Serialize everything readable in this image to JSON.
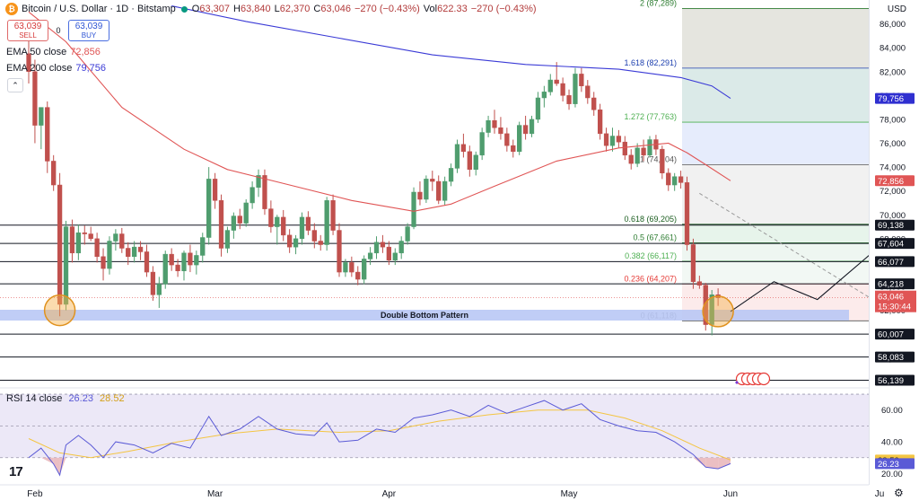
{
  "header": {
    "symbol": "Bitcoin / U.S. Dollar · 1D · Bitstamp",
    "logo_glyph": "₿",
    "o_label": "O",
    "o_value": "63,307",
    "h_label": "H",
    "h_value": "63,840",
    "l_label": "L",
    "l_value": "62,370",
    "c_label": "C",
    "c_value": "63,046",
    "change": "−270 (−0.43%)",
    "vol_label": "Vol",
    "vol_value": "622.33",
    "vol_change": "−270 (−0.43%)"
  },
  "trade": {
    "sell_price": "63,039",
    "sell_label": "SELL",
    "spread": "0",
    "buy_price": "63,039",
    "buy_label": "BUY"
  },
  "indicators": {
    "ema50_label": "EMA 50 close",
    "ema50_value": "72,856",
    "ema50_color": "#e05555",
    "ema200_label": "EMA 200 close",
    "ema200_value": "79,756",
    "ema200_color": "#3a3ad6",
    "collapse_glyph": "⌃",
    "rsi_label": "RSI 14 close",
    "rsi_value": "26.23",
    "rsi_ma_value": "28.52"
  },
  "currency": "USD",
  "double_bottom_label": "Double Bottom Pattern",
  "tv_logo": "17",
  "settings_glyph": "⚙",
  "chart_data": {
    "type": "candlestick",
    "x_ticks": [
      "Feb",
      "Mar",
      "Apr",
      "May",
      "Jun",
      "Ju"
    ],
    "y_ticks": [
      "58,000",
      "60,000",
      "62,000",
      "64,000",
      "66,000",
      "68,000",
      "70,000",
      "72,000",
      "74,000",
      "76,000",
      "78,000",
      "80,000",
      "82,000",
      "84,000",
      "86,000"
    ],
    "ylim": [
      55500,
      88000
    ],
    "rsi_ticks": [
      "60.00",
      "40.00",
      "20.00"
    ],
    "rsi_ylim": [
      14,
      74
    ],
    "candles": [
      {
        "o": 83500,
        "h": 85500,
        "l": 81000,
        "c": 82000
      },
      {
        "o": 82000,
        "h": 83000,
        "l": 76000,
        "c": 77500
      },
      {
        "o": 77500,
        "h": 79000,
        "l": 75500,
        "c": 79000
      },
      {
        "o": 79000,
        "h": 79500,
        "l": 73500,
        "c": 74500
      },
      {
        "o": 74500,
        "h": 75000,
        "l": 72000,
        "c": 72500
      },
      {
        "o": 72500,
        "h": 73500,
        "l": 61500,
        "c": 62500
      },
      {
        "o": 62500,
        "h": 69500,
        "l": 62000,
        "c": 69000
      },
      {
        "o": 69000,
        "h": 69600,
        "l": 66000,
        "c": 66800
      },
      {
        "o": 66800,
        "h": 69200,
        "l": 66200,
        "c": 68500
      },
      {
        "o": 68500,
        "h": 69100,
        "l": 67500,
        "c": 68400
      },
      {
        "o": 68400,
        "h": 69000,
        "l": 67800,
        "c": 68000
      },
      {
        "o": 68000,
        "h": 68500,
        "l": 66000,
        "c": 66500
      },
      {
        "o": 66500,
        "h": 67200,
        "l": 64500,
        "c": 65500
      },
      {
        "o": 65500,
        "h": 68200,
        "l": 65000,
        "c": 67800
      },
      {
        "o": 67800,
        "h": 68800,
        "l": 67000,
        "c": 68400
      },
      {
        "o": 68400,
        "h": 68900,
        "l": 66800,
        "c": 67200
      },
      {
        "o": 67200,
        "h": 67700,
        "l": 65800,
        "c": 66500
      },
      {
        "o": 66500,
        "h": 67800,
        "l": 66000,
        "c": 67300
      },
      {
        "o": 67300,
        "h": 67800,
        "l": 66200,
        "c": 66900
      },
      {
        "o": 66900,
        "h": 67500,
        "l": 64800,
        "c": 65200
      },
      {
        "o": 65200,
        "h": 65700,
        "l": 62800,
        "c": 63300
      },
      {
        "o": 63300,
        "h": 64800,
        "l": 62200,
        "c": 64200
      },
      {
        "o": 64200,
        "h": 67000,
        "l": 63800,
        "c": 66700
      },
      {
        "o": 66700,
        "h": 67200,
        "l": 65300,
        "c": 65800
      },
      {
        "o": 65800,
        "h": 66300,
        "l": 64800,
        "c": 65300
      },
      {
        "o": 65300,
        "h": 67000,
        "l": 64500,
        "c": 66800
      },
      {
        "o": 66800,
        "h": 67500,
        "l": 65200,
        "c": 65800
      },
      {
        "o": 65800,
        "h": 67000,
        "l": 65000,
        "c": 66600
      },
      {
        "o": 66600,
        "h": 68500,
        "l": 66000,
        "c": 68100
      },
      {
        "o": 68100,
        "h": 74000,
        "l": 67500,
        "c": 73000
      },
      {
        "o": 73000,
        "h": 73500,
        "l": 70500,
        "c": 71200
      },
      {
        "o": 71200,
        "h": 71700,
        "l": 66500,
        "c": 67200
      },
      {
        "o": 67200,
        "h": 69000,
        "l": 66800,
        "c": 68700
      },
      {
        "o": 68700,
        "h": 70200,
        "l": 68000,
        "c": 69900
      },
      {
        "o": 69900,
        "h": 70500,
        "l": 68800,
        "c": 69300
      },
      {
        "o": 69300,
        "h": 71300,
        "l": 69000,
        "c": 71000
      },
      {
        "o": 71000,
        "h": 72800,
        "l": 70500,
        "c": 72300
      },
      {
        "o": 72300,
        "h": 73800,
        "l": 71500,
        "c": 73300
      },
      {
        "o": 73300,
        "h": 73800,
        "l": 70000,
        "c": 70500
      },
      {
        "o": 70500,
        "h": 71200,
        "l": 68500,
        "c": 69000
      },
      {
        "o": 69000,
        "h": 70000,
        "l": 67500,
        "c": 69800
      },
      {
        "o": 69800,
        "h": 70400,
        "l": 67800,
        "c": 68300
      },
      {
        "o": 68300,
        "h": 68800,
        "l": 66800,
        "c": 67300
      },
      {
        "o": 67300,
        "h": 68300,
        "l": 66700,
        "c": 68000
      },
      {
        "o": 68000,
        "h": 70200,
        "l": 67500,
        "c": 69800
      },
      {
        "o": 69800,
        "h": 70300,
        "l": 68300,
        "c": 68700
      },
      {
        "o": 68700,
        "h": 69300,
        "l": 67200,
        "c": 67800
      },
      {
        "o": 67800,
        "h": 68300,
        "l": 67000,
        "c": 67500
      },
      {
        "o": 67500,
        "h": 71500,
        "l": 67000,
        "c": 71200
      },
      {
        "o": 71200,
        "h": 71700,
        "l": 68300,
        "c": 68700
      },
      {
        "o": 68700,
        "h": 69300,
        "l": 64800,
        "c": 65200
      },
      {
        "o": 65200,
        "h": 66300,
        "l": 64800,
        "c": 66000
      },
      {
        "o": 66000,
        "h": 66500,
        "l": 64800,
        "c": 65200
      },
      {
        "o": 65200,
        "h": 65700,
        "l": 64100,
        "c": 64600
      },
      {
        "o": 64600,
        "h": 66600,
        "l": 64200,
        "c": 66300
      },
      {
        "o": 66300,
        "h": 67300,
        "l": 65800,
        "c": 66800
      },
      {
        "o": 66800,
        "h": 68200,
        "l": 66300,
        "c": 67700
      },
      {
        "o": 67700,
        "h": 68300,
        "l": 66800,
        "c": 67300
      },
      {
        "o": 67300,
        "h": 67800,
        "l": 65800,
        "c": 66200
      },
      {
        "o": 66200,
        "h": 67200,
        "l": 65800,
        "c": 66800
      },
      {
        "o": 66800,
        "h": 68200,
        "l": 66300,
        "c": 67800
      },
      {
        "o": 67800,
        "h": 69300,
        "l": 67500,
        "c": 69000
      },
      {
        "o": 69000,
        "h": 72300,
        "l": 68800,
        "c": 71900
      },
      {
        "o": 71900,
        "h": 72800,
        "l": 70800,
        "c": 71300
      },
      {
        "o": 71300,
        "h": 73300,
        "l": 71000,
        "c": 73000
      },
      {
        "o": 73000,
        "h": 73700,
        "l": 72000,
        "c": 72800
      },
      {
        "o": 72800,
        "h": 73300,
        "l": 70900,
        "c": 71200
      },
      {
        "o": 71200,
        "h": 73200,
        "l": 70800,
        "c": 72800
      },
      {
        "o": 72800,
        "h": 74300,
        "l": 72400,
        "c": 73900
      },
      {
        "o": 73900,
        "h": 76300,
        "l": 73500,
        "c": 75900
      },
      {
        "o": 75900,
        "h": 76800,
        "l": 74800,
        "c": 75300
      },
      {
        "o": 75300,
        "h": 75800,
        "l": 73200,
        "c": 73800
      },
      {
        "o": 73800,
        "h": 75300,
        "l": 73300,
        "c": 75000
      },
      {
        "o": 75000,
        "h": 77300,
        "l": 74600,
        "c": 76900
      },
      {
        "o": 76900,
        "h": 78300,
        "l": 76500,
        "c": 77900
      },
      {
        "o": 77900,
        "h": 78800,
        "l": 76800,
        "c": 77300
      },
      {
        "o": 77300,
        "h": 78200,
        "l": 76300,
        "c": 76800
      },
      {
        "o": 76800,
        "h": 77300,
        "l": 75300,
        "c": 75800
      },
      {
        "o": 75800,
        "h": 76300,
        "l": 74800,
        "c": 75300
      },
      {
        "o": 75300,
        "h": 77800,
        "l": 75000,
        "c": 77500
      },
      {
        "o": 77500,
        "h": 78300,
        "l": 76300,
        "c": 76800
      },
      {
        "o": 76800,
        "h": 78300,
        "l": 76500,
        "c": 78000
      },
      {
        "o": 78000,
        "h": 80300,
        "l": 77700,
        "c": 79800
      },
      {
        "o": 79800,
        "h": 80800,
        "l": 79000,
        "c": 80300
      },
      {
        "o": 80300,
        "h": 81800,
        "l": 80000,
        "c": 81300
      },
      {
        "o": 81300,
        "h": 82800,
        "l": 80800,
        "c": 81000
      },
      {
        "o": 81000,
        "h": 81500,
        "l": 79500,
        "c": 80000
      },
      {
        "o": 80000,
        "h": 80500,
        "l": 78800,
        "c": 79300
      },
      {
        "o": 79300,
        "h": 82300,
        "l": 79000,
        "c": 81800
      },
      {
        "o": 81800,
        "h": 82300,
        "l": 80300,
        "c": 80800
      },
      {
        "o": 80800,
        "h": 81300,
        "l": 79300,
        "c": 79800
      },
      {
        "o": 79800,
        "h": 80300,
        "l": 78300,
        "c": 78800
      },
      {
        "o": 78800,
        "h": 79300,
        "l": 76300,
        "c": 76800
      },
      {
        "o": 76800,
        "h": 77300,
        "l": 75300,
        "c": 75800
      },
      {
        "o": 75800,
        "h": 77300,
        "l": 75300,
        "c": 76600
      },
      {
        "o": 76600,
        "h": 77100,
        "l": 75600,
        "c": 76100
      },
      {
        "o": 76100,
        "h": 76600,
        "l": 74600,
        "c": 75000
      },
      {
        "o": 75000,
        "h": 75500,
        "l": 73800,
        "c": 74300
      },
      {
        "o": 74300,
        "h": 76000,
        "l": 74000,
        "c": 75600
      },
      {
        "o": 75600,
        "h": 76300,
        "l": 74500,
        "c": 75000
      },
      {
        "o": 75000,
        "h": 76600,
        "l": 74800,
        "c": 76300
      },
      {
        "o": 76300,
        "h": 76700,
        "l": 75000,
        "c": 75500
      },
      {
        "o": 75500,
        "h": 75800,
        "l": 73000,
        "c": 73500
      },
      {
        "o": 73500,
        "h": 73900,
        "l": 72000,
        "c": 72500
      },
      {
        "o": 72500,
        "h": 73500,
        "l": 72000,
        "c": 73200
      },
      {
        "o": 73200,
        "h": 73700,
        "l": 72200,
        "c": 72700
      },
      {
        "o": 72700,
        "h": 73200,
        "l": 67000,
        "c": 67500
      },
      {
        "o": 67500,
        "h": 68000,
        "l": 63800,
        "c": 64400
      },
      {
        "o": 64400,
        "h": 64900,
        "l": 63800,
        "c": 64100
      },
      {
        "o": 64100,
        "h": 64300,
        "l": 60300,
        "c": 60800
      },
      {
        "o": 60800,
        "h": 63700,
        "l": 59900,
        "c": 63300
      },
      {
        "o": 63307,
        "h": 63840,
        "l": 62370,
        "c": 63046
      }
    ],
    "ema50": [
      {
        "i": 0,
        "v": 87000
      },
      {
        "i": 6,
        "v": 84500
      },
      {
        "i": 15,
        "v": 79000
      },
      {
        "i": 25,
        "v": 75500
      },
      {
        "i": 32,
        "v": 73800
      },
      {
        "i": 42,
        "v": 72500
      },
      {
        "i": 52,
        "v": 71200
      },
      {
        "i": 62,
        "v": 70300
      },
      {
        "i": 68,
        "v": 70900
      },
      {
        "i": 75,
        "v": 72400
      },
      {
        "i": 85,
        "v": 74500
      },
      {
        "i": 95,
        "v": 75600
      },
      {
        "i": 103,
        "v": 76000
      },
      {
        "i": 106,
        "v": 75200
      },
      {
        "i": 109,
        "v": 74200
      },
      {
        "i": 113,
        "v": 72856
      }
    ],
    "ema200": [
      {
        "i": 23,
        "v": 87500
      },
      {
        "i": 35,
        "v": 86200
      },
      {
        "i": 50,
        "v": 84800
      },
      {
        "i": 65,
        "v": 83400
      },
      {
        "i": 80,
        "v": 82600
      },
      {
        "i": 95,
        "v": 82200
      },
      {
        "i": 105,
        "v": 81500
      },
      {
        "i": 110,
        "v": 80800
      },
      {
        "i": 113,
        "v": 79756
      }
    ],
    "rsi": [
      {
        "i": 0,
        "v": 30
      },
      {
        "i": 2,
        "v": 36
      },
      {
        "i": 4,
        "v": 26
      },
      {
        "i": 5,
        "v": 19
      },
      {
        "i": 6,
        "v": 38
      },
      {
        "i": 8,
        "v": 44
      },
      {
        "i": 10,
        "v": 38
      },
      {
        "i": 12,
        "v": 30
      },
      {
        "i": 14,
        "v": 40
      },
      {
        "i": 17,
        "v": 38
      },
      {
        "i": 20,
        "v": 33
      },
      {
        "i": 23,
        "v": 39
      },
      {
        "i": 26,
        "v": 36
      },
      {
        "i": 29,
        "v": 56
      },
      {
        "i": 31,
        "v": 44
      },
      {
        "i": 34,
        "v": 48
      },
      {
        "i": 37,
        "v": 56
      },
      {
        "i": 40,
        "v": 48
      },
      {
        "i": 43,
        "v": 45
      },
      {
        "i": 46,
        "v": 44
      },
      {
        "i": 48,
        "v": 52
      },
      {
        "i": 50,
        "v": 40
      },
      {
        "i": 53,
        "v": 41
      },
      {
        "i": 56,
        "v": 48
      },
      {
        "i": 59,
        "v": 46
      },
      {
        "i": 62,
        "v": 55
      },
      {
        "i": 65,
        "v": 57
      },
      {
        "i": 68,
        "v": 60
      },
      {
        "i": 71,
        "v": 56
      },
      {
        "i": 74,
        "v": 63
      },
      {
        "i": 77,
        "v": 58
      },
      {
        "i": 80,
        "v": 62
      },
      {
        "i": 83,
        "v": 66
      },
      {
        "i": 86,
        "v": 60
      },
      {
        "i": 89,
        "v": 64
      },
      {
        "i": 92,
        "v": 54
      },
      {
        "i": 95,
        "v": 50
      },
      {
        "i": 98,
        "v": 47
      },
      {
        "i": 101,
        "v": 46
      },
      {
        "i": 104,
        "v": 40
      },
      {
        "i": 107,
        "v": 32
      },
      {
        "i": 109,
        "v": 24
      },
      {
        "i": 111,
        "v": 23
      },
      {
        "i": 113,
        "v": 26.23
      }
    ],
    "rsi_ma": [
      {
        "i": 0,
        "v": 42
      },
      {
        "i": 5,
        "v": 33
      },
      {
        "i": 10,
        "v": 30
      },
      {
        "i": 16,
        "v": 34
      },
      {
        "i": 24,
        "v": 40
      },
      {
        "i": 32,
        "v": 45
      },
      {
        "i": 40,
        "v": 48
      },
      {
        "i": 50,
        "v": 46
      },
      {
        "i": 58,
        "v": 47
      },
      {
        "i": 66,
        "v": 53
      },
      {
        "i": 74,
        "v": 57
      },
      {
        "i": 82,
        "v": 60
      },
      {
        "i": 90,
        "v": 60
      },
      {
        "i": 96,
        "v": 55
      },
      {
        "i": 102,
        "v": 47
      },
      {
        "i": 108,
        "v": 36
      },
      {
        "i": 113,
        "v": 28.52
      }
    ],
    "rsi_overbought": 70,
    "rsi_oversold": 30,
    "rsi_mid": 50,
    "fib_levels": [
      {
        "label": "2 (87,289)",
        "price": 87289,
        "color": "#2e7d32"
      },
      {
        "label": "1.618 (82,291)",
        "price": 82291,
        "color": "#1e40af"
      },
      {
        "label": "1.272 (77,763)",
        "price": 77763,
        "color": "#4caf50"
      },
      {
        "label": "1 (74,204)",
        "price": 74204,
        "color": "#555555"
      },
      {
        "label": "0.618 (69,205)",
        "price": 69205,
        "color": "#1b5e20"
      },
      {
        "label": "0.5 (67,661)",
        "price": 67661,
        "color": "#2e7d32"
      },
      {
        "label": "0.382 (66,117)",
        "price": 66117,
        "color": "#4caf50"
      },
      {
        "label": "0.236 (64,207)",
        "price": 64207,
        "color": "#e53935"
      },
      {
        "label": "0 (61,118)",
        "price": 61118,
        "color": "#555555"
      }
    ],
    "horizontal_levels": [
      69138,
      67604,
      66077,
      64218,
      60007,
      58083,
      56139
    ],
    "price_labels": [
      {
        "text": "69,138",
        "price": 69138,
        "bg": "#131722",
        "fg": "#ffffff"
      },
      {
        "text": "67,604",
        "price": 67604,
        "bg": "#131722",
        "fg": "#ffffff"
      },
      {
        "text": "66,077",
        "price": 66077,
        "bg": "#131722",
        "fg": "#ffffff"
      },
      {
        "text": "64,218",
        "price": 64218,
        "bg": "#131722",
        "fg": "#ffffff"
      },
      {
        "text": "60,007",
        "price": 60007,
        "bg": "#131722",
        "fg": "#ffffff"
      },
      {
        "text": "58,083",
        "price": 58083,
        "bg": "#131722",
        "fg": "#ffffff"
      },
      {
        "text": "56,139",
        "price": 56139,
        "bg": "#131722",
        "fg": "#ffffff"
      },
      {
        "text": "79,756",
        "price": 79756,
        "bg": "#2f2fd0",
        "fg": "#ffffff"
      },
      {
        "text": "72,856",
        "price": 72856,
        "bg": "#e05555",
        "fg": "#ffffff"
      }
    ],
    "current_price_label": {
      "price_text": "63,046",
      "countdown": "15:30:44",
      "price": 63046
    },
    "rsi_labels": [
      {
        "text": "28.52",
        "v": 28.52,
        "bg": "#f4c542",
        "fg": "#131722"
      },
      {
        "text": "26.23",
        "v": 26.23,
        "bg": "#5a5ad6",
        "fg": "#ffffff"
      }
    ],
    "projection": [
      {
        "i": 113,
        "v": 61900
      },
      {
        "i": 120,
        "v": 64400
      },
      {
        "i": 127,
        "v": 62900
      },
      {
        "i": 138,
        "v": 67800
      }
    ],
    "trendline": [
      {
        "i": 108,
        "v": 71800
      },
      {
        "i": 140,
        "v": 61600
      }
    ],
    "bottoms": [
      {
        "i": 5,
        "v": 62000
      },
      {
        "i": 111,
        "v": 61900
      }
    ],
    "colors": {
      "up": "#4f9d6e",
      "down": "#c0504d",
      "bg_up": "#e8f3ec"
    }
  }
}
